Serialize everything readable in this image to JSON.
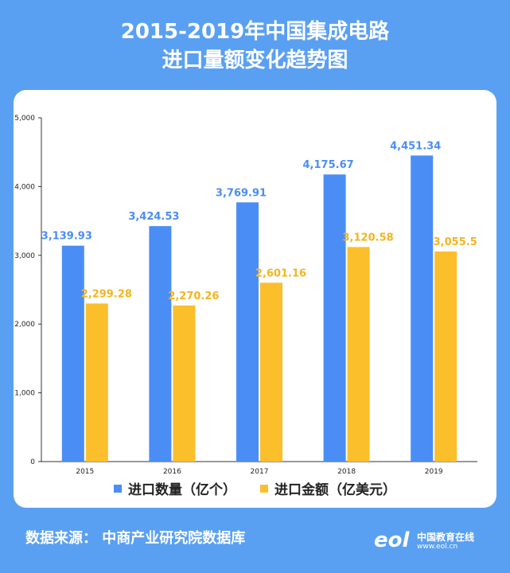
{
  "title_lines": [
    "2015-2019年中国集成电路",
    "进口量额变化趋势图"
  ],
  "chart_data": {
    "type": "bar",
    "categories": [
      "2015",
      "2016",
      "2017",
      "2018",
      "2019"
    ],
    "series": [
      {
        "name": "进口数量（亿个）",
        "values": [
          3139.93,
          3424.53,
          3769.91,
          4175.67,
          4451.34
        ],
        "labels": [
          "3,139.93",
          "3,424.53",
          "3,769.91",
          "4,175.67",
          "4,451.34"
        ],
        "color": "#4a8ef5",
        "label_color": "#4a8ef5"
      },
      {
        "name": "进口金额（亿美元）",
        "values": [
          2299.28,
          2270.26,
          2601.16,
          3120.58,
          3055.5
        ],
        "labels": [
          "2,299.28",
          "2,270.26",
          "2,601.16",
          "3,120.58",
          "3,055.5"
        ],
        "color": "#fbbf2c",
        "label_color": "#f5b41e"
      }
    ],
    "ylim": [
      0,
      5000
    ],
    "yticks": [
      0,
      1000,
      2000,
      3000,
      4000,
      5000
    ],
    "ytick_labels": [
      "0",
      "1,000",
      "2,000",
      "3,000",
      "4,000",
      "5,000"
    ],
    "grid": false,
    "legend_position": "bottom"
  },
  "footer": {
    "source": "数据来源：  中商产业研究院数据库"
  },
  "logo": {
    "mark": "eol",
    "name": "中国教育在线",
    "url": "www.eol.cn"
  }
}
